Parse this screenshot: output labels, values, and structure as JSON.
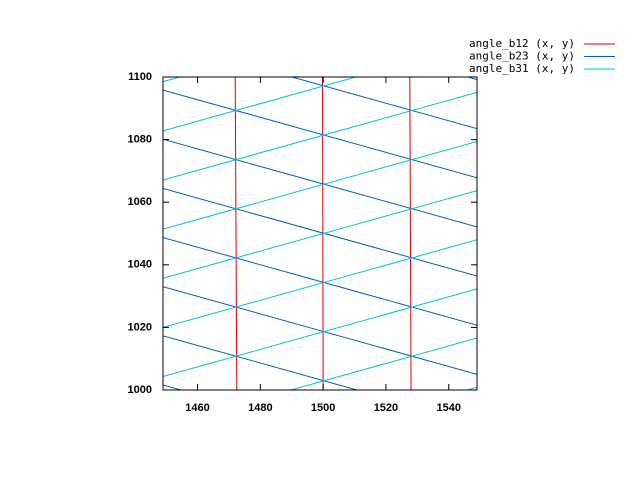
{
  "chart_data": {
    "type": "line",
    "xlim": [
      1449,
      1549
    ],
    "ylim": [
      1000,
      1100
    ],
    "xticks": [
      1460,
      1480,
      1500,
      1520,
      1540
    ],
    "yticks": [
      1000,
      1020,
      1040,
      1060,
      1080,
      1100
    ],
    "legend": "top-right",
    "series": [
      {
        "name": "angle_b12 (x, y)",
        "color": "#e00000",
        "x": [
          1472.5,
          1472,
          null,
          1500,
          1499.8,
          null,
          1528,
          1527.6
        ],
        "values": [
          1000,
          1100,
          null,
          1000,
          1100,
          null,
          1000,
          1100
        ]
      },
      {
        "name": "angle_b23 (x, y)",
        "color": "#0060c0",
        "x": [
          1449,
          1549,
          null,
          1449,
          1549,
          null,
          1449,
          1549,
          null,
          1449,
          1549,
          null,
          1449,
          1549,
          null,
          1449,
          1549,
          null,
          1449,
          1549,
          null,
          1449,
          1549,
          null,
          1449,
          1549
        ],
        "values": [
          1127.2,
          1099.2,
          null,
          1111.5,
          1083.5,
          null,
          1095.8,
          1067.8,
          null,
          1080.1,
          1052.1,
          null,
          1064.4,
          1036.4,
          null,
          1048.7,
          1020.7,
          null,
          1033,
          1005,
          null,
          1017.3,
          989.3,
          null,
          1001.6,
          973.6
        ]
      },
      {
        "name": "angle_b31 (x, y)",
        "color": "#00c0e0",
        "x": [
          1449,
          1549,
          null,
          1449,
          1549,
          null,
          1449,
          1549,
          null,
          1449,
          1549,
          null,
          1449,
          1549,
          null,
          1449,
          1549,
          null,
          1449,
          1549,
          null,
          1449,
          1549,
          null,
          1449,
          1549
        ],
        "values": [
          1098.5,
          1126.5,
          null,
          1082.8,
          1110.8,
          null,
          1067.1,
          1095.1,
          null,
          1051.4,
          1079.4,
          null,
          1035.7,
          1063.7,
          null,
          1020,
          1048,
          null,
          1004.3,
          1032.3,
          null,
          988.6,
          1016.6,
          null,
          972.9,
          1000.9
        ]
      }
    ]
  }
}
